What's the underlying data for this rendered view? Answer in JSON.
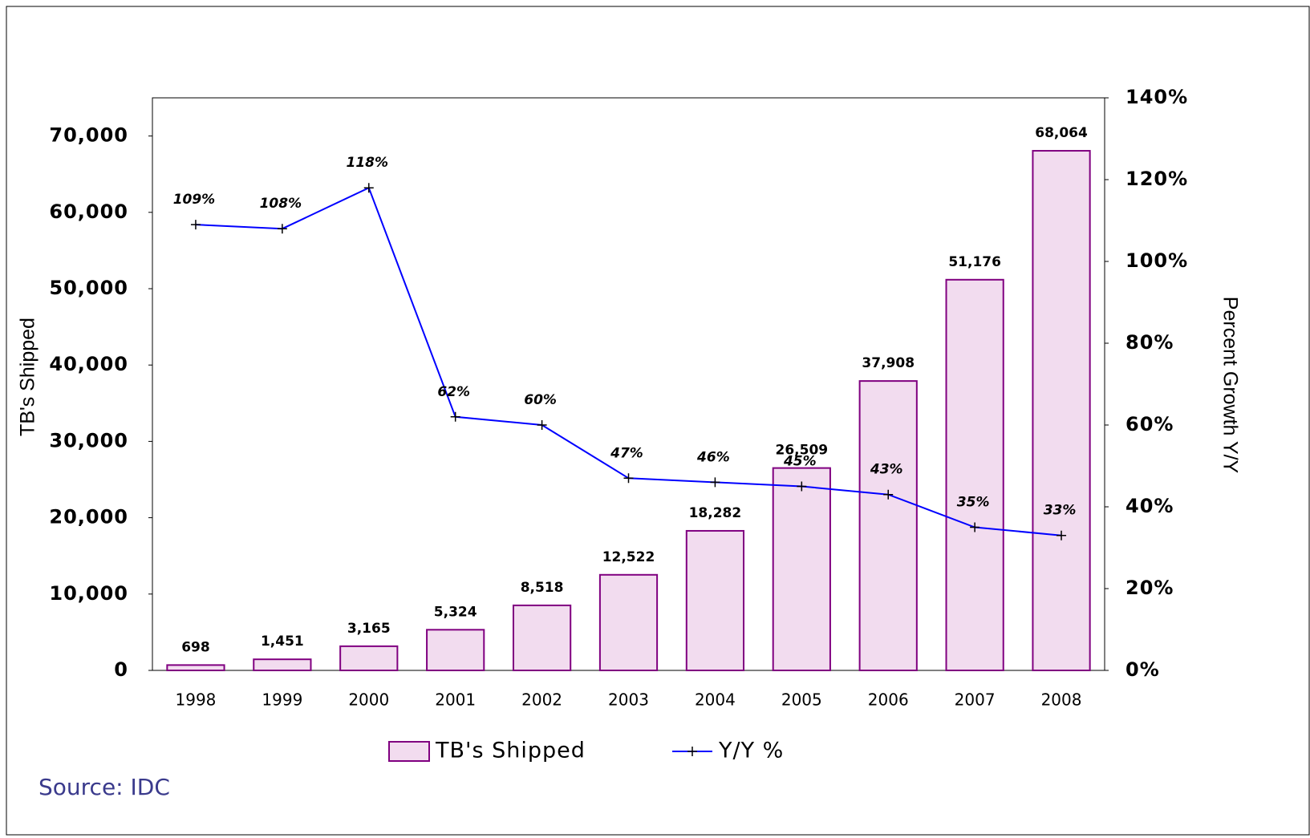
{
  "chart_data": {
    "type": "bar",
    "categories": [
      "1998",
      "1999",
      "2000",
      "2001",
      "2002",
      "2003",
      "2004",
      "2005",
      "2006",
      "2007",
      "2008"
    ],
    "series": [
      {
        "name": "TB's Shipped",
        "type": "bar",
        "color": "#f2dcef",
        "edge_color": "#800080",
        "values": [
          698,
          1451,
          3165,
          5324,
          8518,
          12522,
          18282,
          26509,
          37908,
          51176,
          68064
        ],
        "value_labels": [
          "698",
          "1,451",
          "3,165",
          "5,324",
          "8,518",
          "12,522",
          "18,282",
          "26,509",
          "37,908",
          "51,176",
          "68,064"
        ]
      },
      {
        "name": "Y/Y %",
        "type": "line",
        "axis": "y2",
        "color": "#0000ff",
        "values": [
          109,
          108,
          118,
          62,
          60,
          47,
          46,
          45,
          43,
          35,
          33
        ],
        "value_labels": [
          "109%",
          "108%",
          "118%",
          "62%",
          "60%",
          "47%",
          "46%",
          "45%",
          "43%",
          "35%",
          "33%"
        ]
      }
    ],
    "ylabel": "TB's Shipped",
    "y2label": "Percent Growth Y/Y",
    "ylim": [
      0,
      75000
    ],
    "yticks": [
      0,
      {
        "value": 10000,
        "label": "10,000"
      },
      {
        "value": 20000,
        "label": "20,000"
      },
      {
        "value": 30000,
        "label": "30,000"
      },
      {
        "value": 40000,
        "label": "40,000"
      },
      {
        "value": 50000,
        "label": "50,000"
      },
      {
        "value": 60000,
        "label": "60,000"
      },
      {
        "value": 70000,
        "label": "70,000"
      }
    ],
    "y2lim": [
      0,
      140
    ],
    "y2ticks": [
      {
        "value": 0,
        "label": "0%"
      },
      {
        "value": 20,
        "label": "20%"
      },
      {
        "value": 40,
        "label": "40%"
      },
      {
        "value": 60,
        "label": "60%"
      },
      {
        "value": 80,
        "label": "80%"
      },
      {
        "value": 100,
        "label": "100%"
      },
      {
        "value": 120,
        "label": "120%"
      },
      {
        "value": 140,
        "label": "140%"
      }
    ],
    "source": "Source: IDC",
    "legend": "bottom"
  }
}
